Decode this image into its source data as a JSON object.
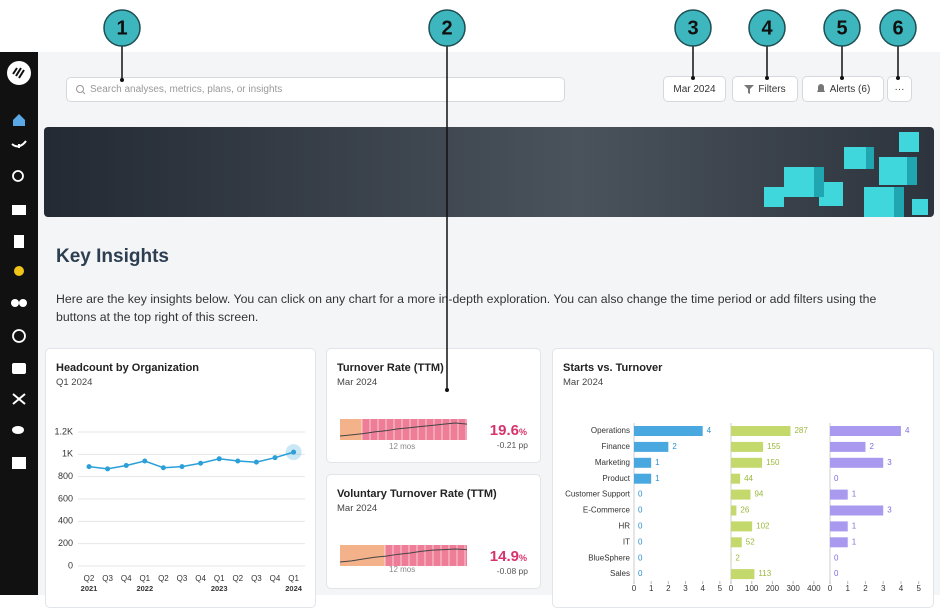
{
  "callouts": [
    "1",
    "2",
    "3",
    "4",
    "5",
    "6"
  ],
  "search": {
    "placeholder": "Search analyses, metrics, plans, or insights"
  },
  "toolbar": {
    "period": "Mar 2024",
    "filters": "Filters",
    "alerts": "Alerts (6)",
    "more": "···"
  },
  "heading": "Key Insights",
  "description": "Here are the key insights below. You can click on any chart for a more in-depth exploration. You can also change the time period or add filters using the buttons at the top right of this screen.",
  "headcount": {
    "title": "Headcount by Organization",
    "subtitle": "Q1 2024",
    "categories": [
      "Q2",
      "Q3",
      "Q4",
      "Q1",
      "Q2",
      "Q3",
      "Q4",
      "Q1",
      "Q2",
      "Q3",
      "Q4",
      "Q1"
    ],
    "years": [
      "2021",
      null,
      null,
      "2022",
      null,
      null,
      null,
      "2023",
      null,
      null,
      null,
      "2024"
    ],
    "values": [
      890,
      870,
      900,
      940,
      880,
      890,
      920,
      960,
      940,
      930,
      970,
      1020
    ],
    "color": "#2a9fd8",
    "ylim": [
      0,
      1200
    ],
    "yticks": [
      0,
      200,
      400,
      600,
      800,
      {
        "value": 1000,
        "label": "1K"
      },
      {
        "value": 1200,
        "label": "1.2K"
      }
    ]
  },
  "turnover": {
    "title": "Turnover Rate (TTM)",
    "subtitle": "Mar 2024",
    "period_label": "12 mos",
    "value": "19.6",
    "unit": "%",
    "change": "-0.21 pp",
    "trend": [
      17.6,
      17.8,
      18.0,
      18.3,
      18.5,
      18.8,
      19.0,
      19.2,
      19.4,
      19.6,
      19.8,
      19.6
    ]
  },
  "voluntary": {
    "title": "Voluntary Turnover Rate (TTM)",
    "subtitle": "Mar 2024",
    "period_label": "12 mos",
    "value": "14.9",
    "unit": "%",
    "change": "-0.08 pp",
    "trend": [
      12.8,
      13.0,
      13.3,
      13.6,
      13.8,
      14.1,
      14.3,
      14.6,
      14.8,
      14.9,
      15.0,
      14.9
    ]
  },
  "starts_vs_turnover": {
    "title": "Starts vs. Turnover",
    "subtitle": "Mar 2024",
    "categories": [
      "Operations",
      "Finance",
      "Marketing",
      "Product",
      "Customer Support",
      "E-Commerce",
      "HR",
      "IT",
      "BlueSphere",
      "Sales"
    ],
    "panels": [
      {
        "color": "#4aa8e0",
        "label_color": "#2a8fd0",
        "values": [
          4,
          2,
          1,
          1,
          0,
          0,
          0,
          0,
          0,
          0
        ],
        "xlim": [
          0,
          5.3
        ],
        "xticks": [
          0,
          1,
          2,
          3,
          4,
          5
        ]
      },
      {
        "color": "#c3d96b",
        "label_color": "#9ab83a",
        "values": [
          287,
          155,
          150,
          44,
          94,
          26,
          102,
          52,
          2,
          113
        ],
        "xlim": [
          0,
          420
        ],
        "xticks": [
          0,
          100,
          200,
          300,
          400
        ]
      },
      {
        "color": "#a99af0",
        "label_color": "#7f6de0",
        "values": [
          4,
          2,
          3,
          0,
          1,
          3,
          1,
          1,
          0,
          0
        ],
        "xlim": [
          0,
          5.3
        ],
        "xticks": [
          0,
          1,
          2,
          3,
          4,
          5
        ]
      }
    ]
  }
}
